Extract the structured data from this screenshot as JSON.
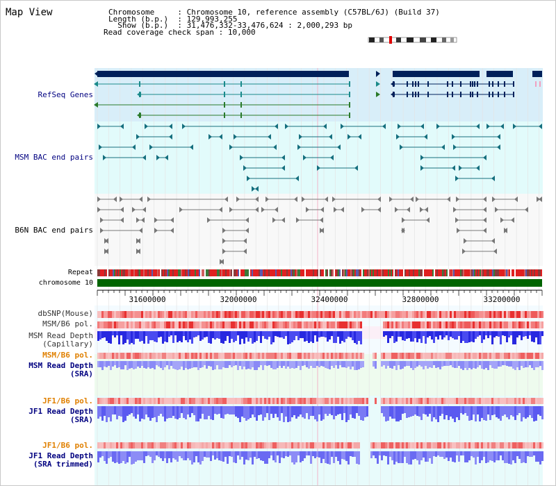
{
  "app": {
    "title": "Map View"
  },
  "info": {
    "chromosome_label": "Chromosome",
    "chromosome_value": "Chromosome 10, reference assembly (C57BL/6J) (Build 37)",
    "length_label": "Length (b.p.)",
    "length_value": "129,993,255",
    "show_label": "Show (b.p.)",
    "show_value": "31,476,332-33,476,624 : 2,000,293 bp",
    "coverage_label": "Read coverage check span",
    "coverage_value": "10,000"
  },
  "tracks": {
    "refseq": "RefSeq Genes",
    "msm_bac": "MSM BAC end pairs",
    "b6n_bac": "B6N BAC end pairs",
    "repeat": "Repeat",
    "chromosome": "chromosome 10",
    "dbsnp": "dbSNP(Mouse)",
    "msm_b6_pol_1": "MSM/B6 pol.",
    "msm_depth_cap_1": "MSM Read Depth",
    "msm_depth_cap_2": "(Capillary)",
    "msm_b6_pol_2": "MSM/B6 pol.",
    "msm_depth_sra_1": "MSM Read Depth",
    "msm_depth_sra_2": "(SRA)",
    "jf1_b6_pol_1": "JF1/B6 pol.",
    "jf1_depth_sra_1": "JF1 Read Depth",
    "jf1_depth_sra_2": "(SRA)",
    "jf1_b6_pol_2": "JF1/B6 pol.",
    "jf1_depth_trim_1": "JF1 Read Depth",
    "jf1_depth_trim_2": "(SRA trimmed)"
  },
  "ruler": {
    "ticks": [
      "31600000",
      "32000000",
      "32400000",
      "32800000",
      "33200000"
    ]
  },
  "colors": {
    "label_dark": "#000080",
    "label_orange": "#e08000",
    "refseq_bg": "#d8eef9",
    "msm_bg": "#e2fbfb",
    "b6n_bg": "#f8f8f8",
    "gene_dark": "#00205a",
    "gene_teal": "#1a8a8a",
    "gene_green": "#2a7a2a",
    "bac_teal": "#156f7e",
    "chrom_green": "#006400",
    "depth_blue": "#3838e8",
    "depth_light": "#8a8af6",
    "snp_red": "#e83030"
  }
}
